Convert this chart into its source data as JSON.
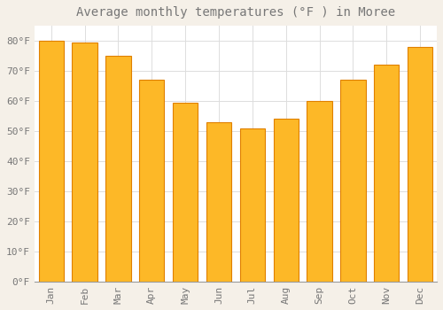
{
  "title": "Average monthly temperatures (°F ) in Moree",
  "months": [
    "Jan",
    "Feb",
    "Mar",
    "Apr",
    "May",
    "Jun",
    "Jul",
    "Aug",
    "Sep",
    "Oct",
    "Nov",
    "Dec"
  ],
  "values": [
    80,
    79.5,
    75,
    67,
    59.5,
    53,
    51,
    54,
    60,
    67,
    72,
    78
  ],
  "bar_color": "#FDB827",
  "bar_edge_color": "#E08000",
  "background_color": "#FFFFFF",
  "fig_background_color": "#F5F0E8",
  "grid_color": "#DDDDDD",
  "text_color": "#777777",
  "ylim": [
    0,
    85
  ],
  "title_fontsize": 10,
  "tick_fontsize": 8
}
